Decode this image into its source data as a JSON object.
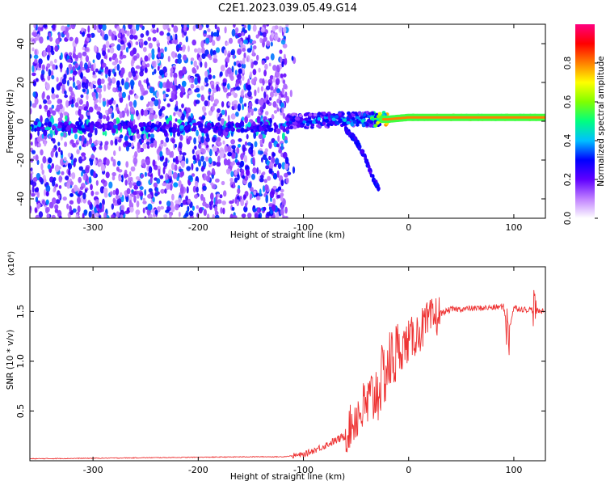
{
  "title": "C2E1.2023.039.05.49.G14",
  "chart_data": [
    {
      "type": "heatmap",
      "xlabel": "Height of straight line (km)",
      "ylabel": "Frequency (Hz)",
      "xlim": [
        -360,
        130
      ],
      "ylim": [
        -50,
        50
      ],
      "xticks": [
        -300,
        -200,
        -100,
        0,
        100
      ],
      "yticks": [
        -40,
        -20,
        0,
        20,
        40
      ],
      "xtick_labels": [
        "-300",
        "-200",
        "-100",
        "0",
        "100"
      ],
      "ytick_labels": [
        "-40",
        "-20",
        "0",
        "20",
        "40"
      ],
      "grid": false,
      "colorbar": {
        "label": "Normalized spectral amplitude",
        "range": [
          0,
          1
        ],
        "ticks": [
          0.0,
          0.2,
          0.4,
          0.6,
          0.8
        ],
        "tick_labels": [
          "0.0",
          "0.2",
          "0.4",
          "0.6",
          "0.8"
        ],
        "colormap": "rainbow",
        "colors": [
          "#ffffff",
          "#c080ff",
          "#6000ff",
          "#0000ff",
          "#00c0ff",
          "#00ff80",
          "#80ff00",
          "#ffff00",
          "#ff8000",
          "#ff0000",
          "#ff0080"
        ]
      },
      "features": {
        "noise_region_x": [
          -360,
          -115
        ],
        "tone_frequency_hz": [
          {
            "x": -110,
            "y": 0
          },
          {
            "x": -60,
            "y": 1
          },
          {
            "x": -20,
            "y": 1
          },
          {
            "x": 0,
            "y": 2
          },
          {
            "x": 50,
            "y": 2
          },
          {
            "x": 100,
            "y": 2
          },
          {
            "x": 130,
            "y": 2
          }
        ],
        "tone_amplitude": [
          {
            "x": -110,
            "y": 0.35
          },
          {
            "x": -80,
            "y": 0.4
          },
          {
            "x": -40,
            "y": 0.45
          },
          {
            "x": -20,
            "y": 0.85
          },
          {
            "x": 20,
            "y": 0.8
          },
          {
            "x": 80,
            "y": 0.8
          },
          {
            "x": 130,
            "y": 0.75
          }
        ],
        "descending_branch": [
          {
            "x": -60,
            "y": -4
          },
          {
            "x": -50,
            "y": -10
          },
          {
            "x": -42,
            "y": -18
          },
          {
            "x": -35,
            "y": -28
          },
          {
            "x": -28,
            "y": -35
          }
        ]
      }
    },
    {
      "type": "line",
      "xlabel": "Height of straight line (km)",
      "ylabel": "SNR (10 * v/v)",
      "y_multiplier": "(x10⁴)",
      "xlim": [
        -360,
        130
      ],
      "ylim": [
        0,
        1.95
      ],
      "xticks": [
        -300,
        -200,
        -100,
        0,
        100
      ],
      "yticks": [
        0.5,
        1.0,
        1.5
      ],
      "xtick_labels": [
        "-300",
        "-200",
        "-100",
        "0",
        "100"
      ],
      "ytick_labels": [
        "0.5",
        "1.0",
        "1.5"
      ],
      "grid": false,
      "color": "#ee3333",
      "series": [
        {
          "x": [
            -360,
            -300,
            -200,
            -150,
            -120,
            -100,
            -80,
            -60,
            -50,
            -40,
            -30,
            -20,
            -10,
            0,
            10,
            20,
            30,
            40,
            60,
            80,
            90,
            95,
            100,
            110,
            120,
            130
          ],
          "y": [
            0.02,
            0.025,
            0.035,
            0.04,
            0.04,
            0.06,
            0.15,
            0.25,
            0.45,
            0.55,
            0.7,
            0.95,
            1.1,
            1.2,
            1.3,
            1.4,
            1.48,
            1.52,
            1.53,
            1.54,
            1.55,
            1.3,
            1.54,
            1.52,
            1.52,
            1.5
          ]
        }
      ]
    }
  ]
}
